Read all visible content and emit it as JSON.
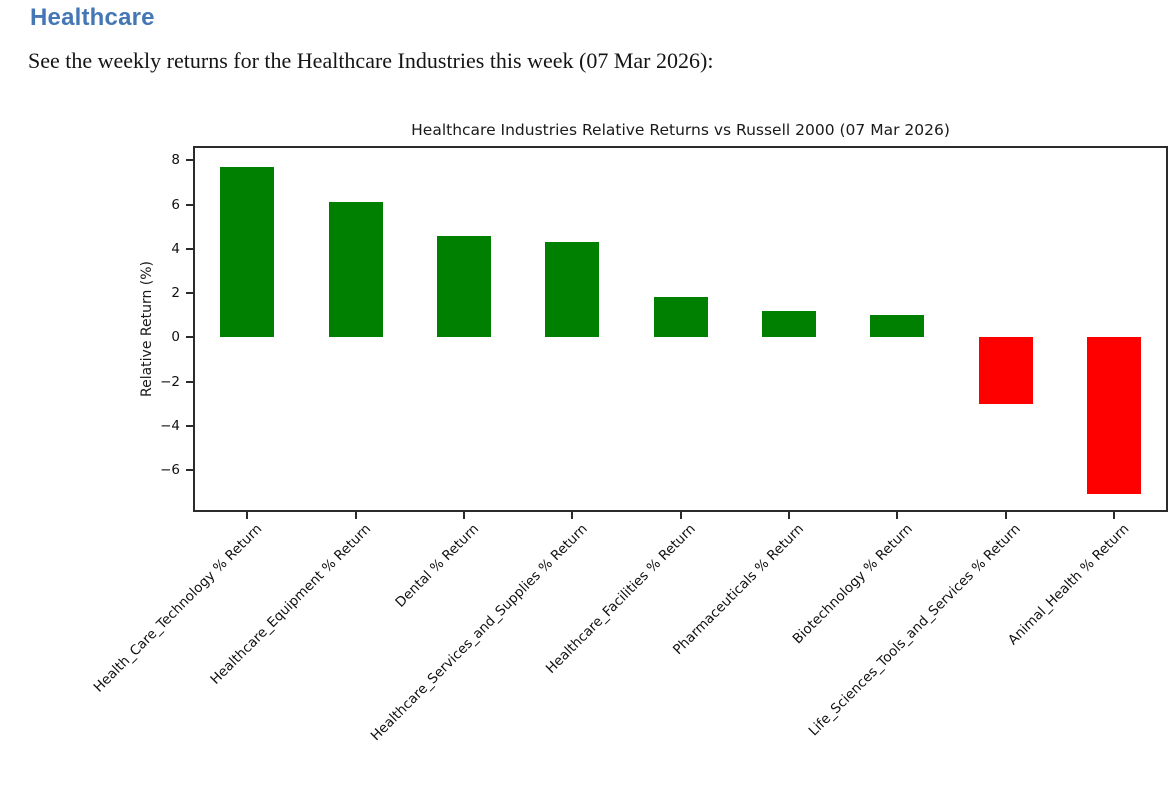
{
  "page": {
    "heading": "Healthcare",
    "heading_color": "#4577b5",
    "intro": "See the weekly returns for the Healthcare Industries this week (07 Mar 2026):"
  },
  "chart_data": {
    "type": "bar",
    "title": "Healthcare Industries Relative Returns vs Russell 2000 (07 Mar 2026)",
    "xlabel": "",
    "ylabel": "Relative Return (%)",
    "categories": [
      "Health_Care_Technology % Return",
      "Healthcare_Equipment % Return",
      "Dental % Return",
      "Healthcare_Services_and_Supplies % Return",
      "Healthcare_Facilities % Return",
      "Pharmaceuticals % Return",
      "Biotechnology % Return",
      "Life_Sciences_Tools_and_Services % Return",
      "Animal_Health % Return"
    ],
    "values": [
      7.7,
      6.1,
      4.6,
      4.3,
      1.8,
      1.2,
      1.0,
      -3.0,
      -7.1
    ],
    "yticks": [
      8,
      6,
      4,
      2,
      0,
      -2,
      -4,
      -6
    ],
    "ylim": [
      -7.9,
      8.65
    ],
    "positive_color": "#008000",
    "negative_color": "#ff0000",
    "grid": false,
    "legend": null,
    "x_tick_rotation_deg": 45
  }
}
